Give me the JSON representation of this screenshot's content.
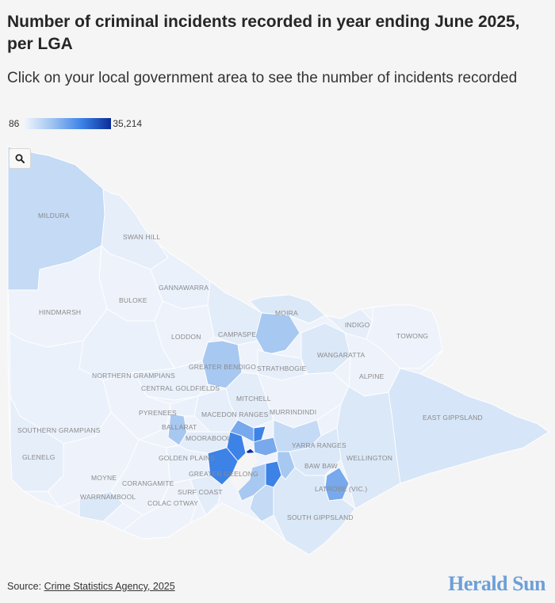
{
  "header": {
    "title": "Number of criminal incidents recorded in year ending June 2025, per LGA",
    "subtitle": "Click on your local government area to see the number of incidents recorded"
  },
  "legend": {
    "min_label": "86",
    "max_label": "35,214",
    "color_low": "#f2f6fc",
    "color_high": "#0a2d99"
  },
  "map": {
    "search_icon": "search-icon",
    "labels": {
      "mildura": "MILDURA",
      "swan_hill": "SWAN HILL",
      "gannawarra": "GANNAWARRA",
      "buloke": "BULOKE",
      "hindmarsh": "HINDMARSH",
      "moira": "MOIRA",
      "indigo": "INDIGO",
      "towong": "TOWONG",
      "campaspe": "CAMPASPE",
      "loddon": "LODDON",
      "wangaratta": "WANGARATTA",
      "greater_bendigo": "GREATER BENDIGO",
      "strathbogie": "STRATHBOGIE",
      "northern_grampians": "NORTHERN GRAMPIANS",
      "alpine": "ALPINE",
      "central_goldfields": "CENTRAL GOLDFIELDS",
      "mitchell": "MITCHELL",
      "east_gippsland": "EAST GIPPSLAND",
      "pyrenees": "PYRENEES",
      "macedon_ranges": "MACEDON RANGES",
      "murrindindi": "MURRINDINDI",
      "ballarat": "BALLARAT",
      "southern_grampians": "SOUTHERN GRAMPIANS",
      "moorabool": "MOORABOOL",
      "yarra_ranges": "YARRA RANGES",
      "glenelg": "GLENELG",
      "golden_plains": "GOLDEN PLAINS",
      "wellington": "WELLINGTON",
      "baw_baw": "BAW BAW",
      "moyne": "MOYNE",
      "greater_geelong": "GREATER GEELONG",
      "corangamite": "CORANGAMITE",
      "surf_coast": "SURF COAST",
      "latrobe": "LATROBE (VIC.)",
      "warrnambool": "WARRNAMBOOL",
      "colac_otway": "COLAC OTWAY",
      "south_gippsland": "SOUTH GIPPSLAND"
    },
    "colors": {
      "very_light": "#eef3fb",
      "light": "#dbe8f8",
      "medium_light": "#c4daf5",
      "medium": "#a7c8f1",
      "medium_dark": "#77a9ec",
      "dark": "#3d82e6",
      "darkest": "#0a2d99"
    }
  },
  "footer": {
    "source_prefix": "Source: ",
    "source_link": "Crime Statistics Agency, 2025",
    "brand": "Herald Sun"
  }
}
